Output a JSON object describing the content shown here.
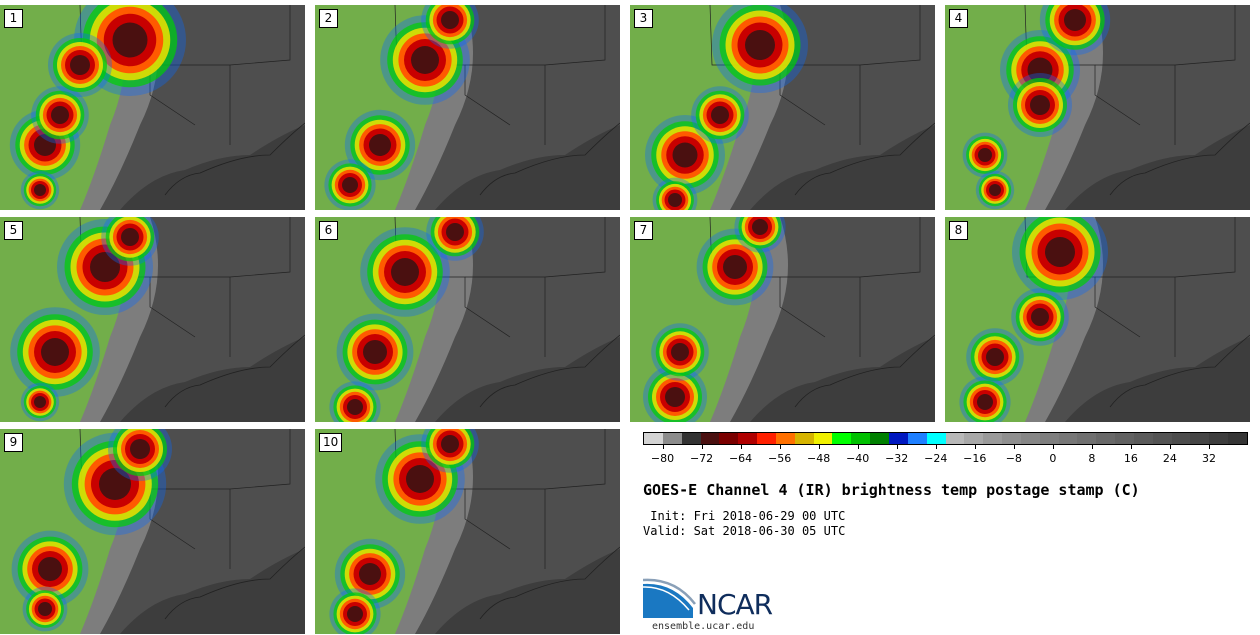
{
  "title": "GOES-E Channel 4 (IR) brightness temp postage stamp (C)",
  "init_line": " Init: Fri 2018-06-29 00 UTC",
  "valid_line": "Valid: Sat 2018-06-30 05 UTC",
  "logo_text": "NCAR",
  "url": "ensemble.ucar.edu",
  "panels": [
    "1",
    "2",
    "3",
    "4",
    "5",
    "6",
    "7",
    "8",
    "9",
    "10"
  ],
  "colorbar": {
    "tick_labels": [
      "−80",
      "−72",
      "−64",
      "−56",
      "−48",
      "−40",
      "−32",
      "−24",
      "−16",
      "−8",
      "0",
      "8",
      "16",
      "24",
      "32"
    ],
    "tick_values": [
      -80,
      -72,
      -64,
      -56,
      -48,
      -40,
      -32,
      -24,
      -16,
      -8,
      0,
      8,
      16,
      24,
      32
    ],
    "min": -84,
    "max": 40,
    "colors": [
      "#d3d3d3",
      "#8c8c8c",
      "#333333",
      "#4a1010",
      "#7a0000",
      "#b00000",
      "#ff2000",
      "#ff7000",
      "#d6b400",
      "#f0f000",
      "#00ff00",
      "#00c000",
      "#008000",
      "#0018c0",
      "#1e7fff",
      "#00ffff",
      "#b8b8b8",
      "#a8a8a8",
      "#9a9a9a",
      "#8f8f8f",
      "#868686",
      "#7e7e7e",
      "#777777",
      "#707070",
      "#686868",
      "#616161",
      "#5a5a5a",
      "#535353",
      "#4c4c4c",
      "#454545",
      "#3d3d3d",
      "#353535"
    ]
  }
}
